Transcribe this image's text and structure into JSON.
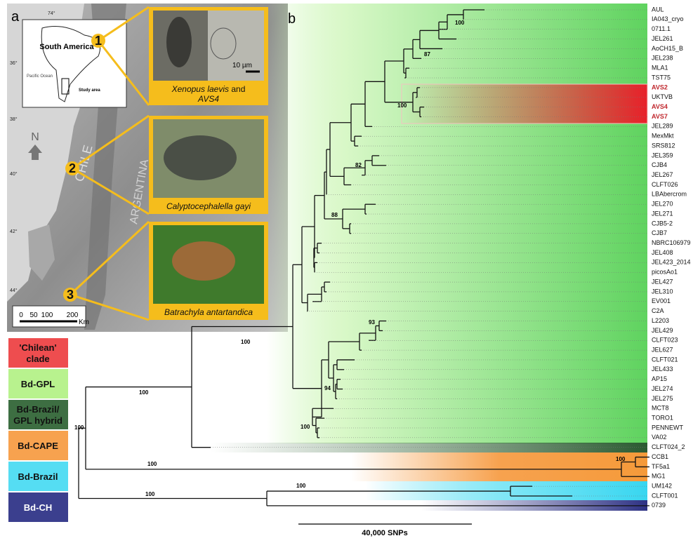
{
  "panel_a": {
    "label": "a",
    "inset_title": "South America",
    "inset_ocean": "Pacific Ocean",
    "inset_area": "Study area",
    "north": "N",
    "country_1": "CHILE",
    "country_2": "ARGENTINA",
    "longitude": "74°",
    "latitudes": [
      "36°",
      "38°",
      "40°",
      "42°",
      "44°"
    ],
    "sites": [
      "1",
      "2",
      "3"
    ],
    "scale_labels": [
      "0",
      "50",
      "100",
      "200"
    ],
    "scale_unit": "Km",
    "micro_scale": "10 µm",
    "photo_1_italic": "Xenopus laevis",
    "photo_1_plain": "and",
    "photo_1_line2": "AVS4",
    "photo_2": "Calyptocephalella gayi",
    "photo_3": "Batrachyla antartandica"
  },
  "panel_b": {
    "label": "b",
    "legend": [
      {
        "label_1": "'Chilean'",
        "label_2": "clade",
        "color": "#ee4d4f"
      },
      {
        "label_1": "Bd-GPL",
        "color": "#b8f28e"
      },
      {
        "label_1": "Bd-Brazil/",
        "label_2": "GPL hybrid",
        "color": "#3d6e42"
      },
      {
        "label_1": "Bd-CAPE",
        "color": "#f7a24f"
      },
      {
        "label_1": "Bd-Brazil",
        "color": "#55ddf3"
      },
      {
        "label_1": "Bd-CH",
        "color": "#3b3f8e"
      }
    ],
    "tips": [
      "AUL",
      "IA043_cryo",
      "0711.1",
      "JEL261",
      "AoCH15_B",
      "JEL238",
      "MLA1",
      "TST75",
      {
        "name": "AVS2",
        "color": "#c0272d"
      },
      "UKTVB",
      {
        "name": "AVS4",
        "color": "#c0272d"
      },
      {
        "name": "AVS7",
        "color": "#c0272d"
      },
      "JEL289",
      "MexMkt",
      "SRS812",
      "JEL359",
      "CJB4",
      "JEL267",
      "CLFT026",
      "LBAbercrom",
      "JEL270",
      "JEL271",
      "CJB5-2",
      "CJB7",
      "NBRC106979",
      "JEL408",
      "JEL423_2014",
      "picosAo1",
      "JEL427",
      "JEL310",
      "EV001",
      "C2A",
      "L2203",
      "JEL429",
      "CLFT023",
      "JEL627",
      "CLFT021",
      "JEL433",
      "AP15",
      "JEL274",
      "JEL275",
      "MCT8",
      "TORO1",
      "PENNEWT",
      "VA02",
      "CLFT024_2",
      "CCB1",
      "TF5a1",
      "MG1",
      "UM142",
      "CLFT001",
      "0739"
    ],
    "support": [
      "100",
      "87",
      "100",
      "82",
      "88",
      "93",
      "94",
      "100",
      "100",
      "100",
      "100",
      "100",
      "100",
      "100",
      "100"
    ],
    "scale_bar": "40,000 SNPs"
  }
}
